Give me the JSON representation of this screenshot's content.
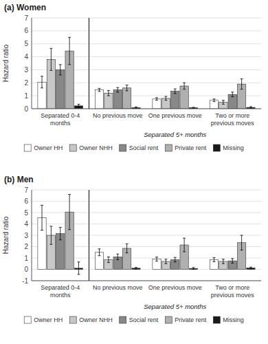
{
  "chart_data": [
    {
      "type": "bar",
      "title": "(a) Women",
      "ylabel": "Hazard ratio",
      "annotation": "Separated 5+ months",
      "categories": [
        "Separated 0-4\nmonths",
        "No previous move",
        "One previous move",
        "Two or more\nprevious moves"
      ],
      "series": [
        {
          "name": "Owner HH",
          "color": "#ffffff",
          "values": [
            2.05,
            1.45,
            0.75,
            0.65
          ],
          "errors": [
            [
              0.45,
              0.45
            ],
            [
              0.12,
              0.12
            ],
            [
              0.1,
              0.1
            ],
            [
              0.1,
              0.1
            ]
          ]
        },
        {
          "name": "Owner NHH",
          "color": "#c8c8c8",
          "values": [
            3.8,
            1.2,
            0.8,
            0.5
          ],
          "errors": [
            [
              0.85,
              0.85
            ],
            [
              0.2,
              0.2
            ],
            [
              0.15,
              0.15
            ],
            [
              0.15,
              0.15
            ]
          ]
        },
        {
          "name": "Social rent",
          "color": "#888888",
          "values": [
            3.0,
            1.45,
            1.35,
            1.1
          ],
          "errors": [
            [
              0.4,
              0.4
            ],
            [
              0.18,
              0.18
            ],
            [
              0.18,
              0.18
            ],
            [
              0.18,
              0.18
            ]
          ]
        },
        {
          "name": "Private rent",
          "color": "#b0b0b0",
          "values": [
            4.45,
            1.6,
            1.75,
            1.9
          ],
          "errors": [
            [
              1.05,
              1.05
            ],
            [
              0.22,
              0.22
            ],
            [
              0.25,
              0.25
            ],
            [
              0.4,
              0.4
            ]
          ]
        },
        {
          "name": "Missing",
          "color": "#1a1a1a",
          "values": [
            0.22,
            0.08,
            0.07,
            0.1
          ],
          "errors": [
            [
              0.12,
              0.12
            ],
            [
              0.05,
              0.05
            ],
            [
              0.04,
              0.04
            ],
            [
              0.06,
              0.06
            ]
          ]
        }
      ],
      "ylim": [
        0,
        7
      ],
      "yticks": [
        0,
        1,
        2,
        3,
        4,
        5,
        6,
        7
      ],
      "grid": true,
      "legend": "bottom"
    },
    {
      "type": "bar",
      "title": "(b) Men",
      "ylabel": "Hazard ratio",
      "annotation": "Separated 5+ months",
      "categories": [
        "Separated 0-4\nmonths",
        "No previous move",
        "One previous move",
        "Two or more\nprevious moves"
      ],
      "series": [
        {
          "name": "Owner HH",
          "color": "#ffffff",
          "values": [
            4.55,
            1.5,
            0.9,
            0.85
          ],
          "errors": [
            [
              1.1,
              1.1
            ],
            [
              0.3,
              0.3
            ],
            [
              0.18,
              0.18
            ],
            [
              0.18,
              0.18
            ]
          ]
        },
        {
          "name": "Owner NHH",
          "color": "#c8c8c8",
          "values": [
            3.0,
            0.85,
            0.7,
            0.7
          ],
          "errors": [
            [
              0.8,
              0.8
            ],
            [
              0.25,
              0.25
            ],
            [
              0.2,
              0.2
            ],
            [
              0.2,
              0.2
            ]
          ]
        },
        {
          "name": "Social rent",
          "color": "#888888",
          "values": [
            3.15,
            1.1,
            0.85,
            0.75
          ],
          "errors": [
            [
              0.55,
              0.55
            ],
            [
              0.25,
              0.25
            ],
            [
              0.2,
              0.2
            ],
            [
              0.2,
              0.2
            ]
          ]
        },
        {
          "name": "Private rent",
          "color": "#b0b0b0",
          "values": [
            5.05,
            1.85,
            2.15,
            2.35
          ],
          "errors": [
            [
              1.55,
              1.55
            ],
            [
              0.4,
              0.4
            ],
            [
              0.6,
              0.6
            ],
            [
              0.65,
              0.65
            ]
          ]
        },
        {
          "name": "Missing",
          "color": "#1a1a1a",
          "values": [
            0.1,
            0.1,
            0.08,
            0.12
          ],
          "errors": [
            [
              0.55,
              0.55
            ],
            [
              0.07,
              0.07
            ],
            [
              0.08,
              0.08
            ],
            [
              0.08,
              0.08
            ]
          ]
        }
      ],
      "ylim": [
        -1,
        7
      ],
      "yticks": [
        -1,
        0,
        1,
        2,
        3,
        4,
        5,
        6,
        7
      ],
      "grid": true,
      "legend": "bottom"
    }
  ]
}
